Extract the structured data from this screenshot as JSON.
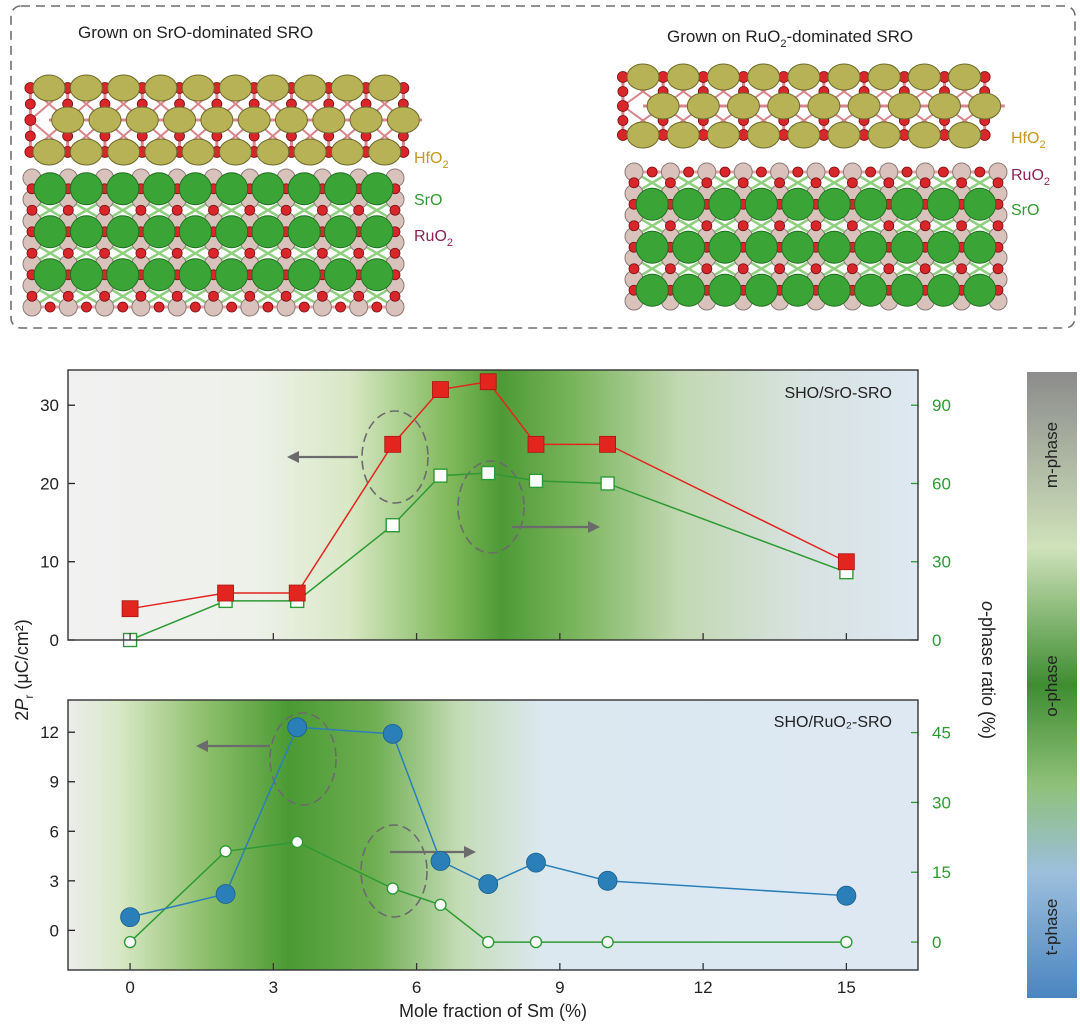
{
  "structure_panel": {
    "left_title": "Grown on SrO-dominated SRO",
    "right_title_prefix": "Grown on RuO",
    "right_title_sub": "2",
    "right_title_suffix": "-dominated SRO",
    "left_labels": [
      {
        "text": "HfO",
        "sub": "2",
        "color": "#c8961e"
      },
      {
        "text": "SrO",
        "sub": "",
        "color": "#2f9a2f"
      },
      {
        "text": "RuO",
        "sub": "2",
        "color": "#8c2358"
      }
    ],
    "right_labels": [
      {
        "text": "HfO",
        "sub": "2",
        "color": "#c8961e"
      },
      {
        "text": "RuO",
        "sub": "2",
        "color": "#8c2358"
      },
      {
        "text": "SrO",
        "sub": "",
        "color": "#2f9a2f"
      }
    ],
    "atom_colors": {
      "hf": "#b7b256",
      "o": "#d8262b",
      "sr": "#3aa536",
      "ru": "#d9c2bc"
    }
  },
  "colorbar": {
    "labels": [
      "m-phase",
      "o-phase",
      "t-phase"
    ],
    "colors": [
      "#8e8e8e",
      "#cfe3b6",
      "#3d8c2f",
      "#8fb9d8",
      "#4b86c0"
    ]
  },
  "shared_axis": {
    "xlabel": "Mole fraction of Sm (%)",
    "xticks": [
      "0",
      "3",
      "6",
      "9",
      "12",
      "15"
    ],
    "ylabel_left_prefix": "2",
    "ylabel_left_italic": "P",
    "ylabel_left_sub": "r",
    "ylabel_left_suffix": " (μC/cm²)",
    "ylabel_right_italic": "o",
    "ylabel_right_suffix": "-phase ratio (%)",
    "left_color": "#222222",
    "right_color": "#2e9a34"
  },
  "chart_data": [
    {
      "type": "line",
      "title": "SHO/SrO-SRO",
      "xlim": [
        -1.3,
        16.5
      ],
      "ylim_left": [
        0,
        34.5
      ],
      "ylim_right": [
        0,
        103.5
      ],
      "yticks_left": [
        "0",
        "10",
        "20",
        "30"
      ],
      "yticks_right": [
        "0",
        "30",
        "60",
        "90"
      ],
      "series": [
        {
          "axis": "left",
          "marker": "square-filled",
          "color": "#e2251f",
          "x": [
            0,
            2,
            3.5,
            5.5,
            6.5,
            7.5,
            8.5,
            10,
            15
          ],
          "values": [
            4,
            6,
            6,
            25,
            32,
            33,
            25,
            25,
            10
          ]
        },
        {
          "axis": "right",
          "marker": "square-open",
          "color": "#2e9a34",
          "x": [
            0,
            2,
            3.5,
            5.5,
            6.5,
            7.5,
            8.5,
            10,
            15
          ],
          "values": [
            0,
            15,
            15,
            44,
            63,
            64,
            61,
            60,
            26
          ]
        }
      ]
    },
    {
      "type": "line",
      "title": "SHO/RuO₂-SRO",
      "xlim": [
        -1.3,
        16.5
      ],
      "ylim_left": [
        -2.4,
        13.95
      ],
      "ylim_right": [
        -6,
        52
      ],
      "yticks_left": [
        "0",
        "3",
        "6",
        "9",
        "12"
      ],
      "yticks_right": [
        "0",
        "15",
        "30",
        "45"
      ],
      "series": [
        {
          "axis": "left",
          "marker": "circle-filled",
          "color": "#2b7fb8",
          "x": [
            0,
            2,
            3.5,
            5.5,
            6.5,
            7.5,
            8.5,
            10,
            15
          ],
          "values": [
            0.8,
            2.2,
            12.3,
            11.9,
            4.2,
            2.8,
            4.1,
            3.0,
            2.1
          ]
        },
        {
          "axis": "right",
          "marker": "circle-open",
          "color": "#2e9a34",
          "x": [
            0,
            2,
            3.5,
            5.5,
            6.5,
            7.5,
            8.5,
            10,
            15
          ],
          "values": [
            0,
            19.5,
            21.5,
            11.5,
            8,
            0,
            0,
            0,
            0
          ]
        }
      ]
    }
  ]
}
